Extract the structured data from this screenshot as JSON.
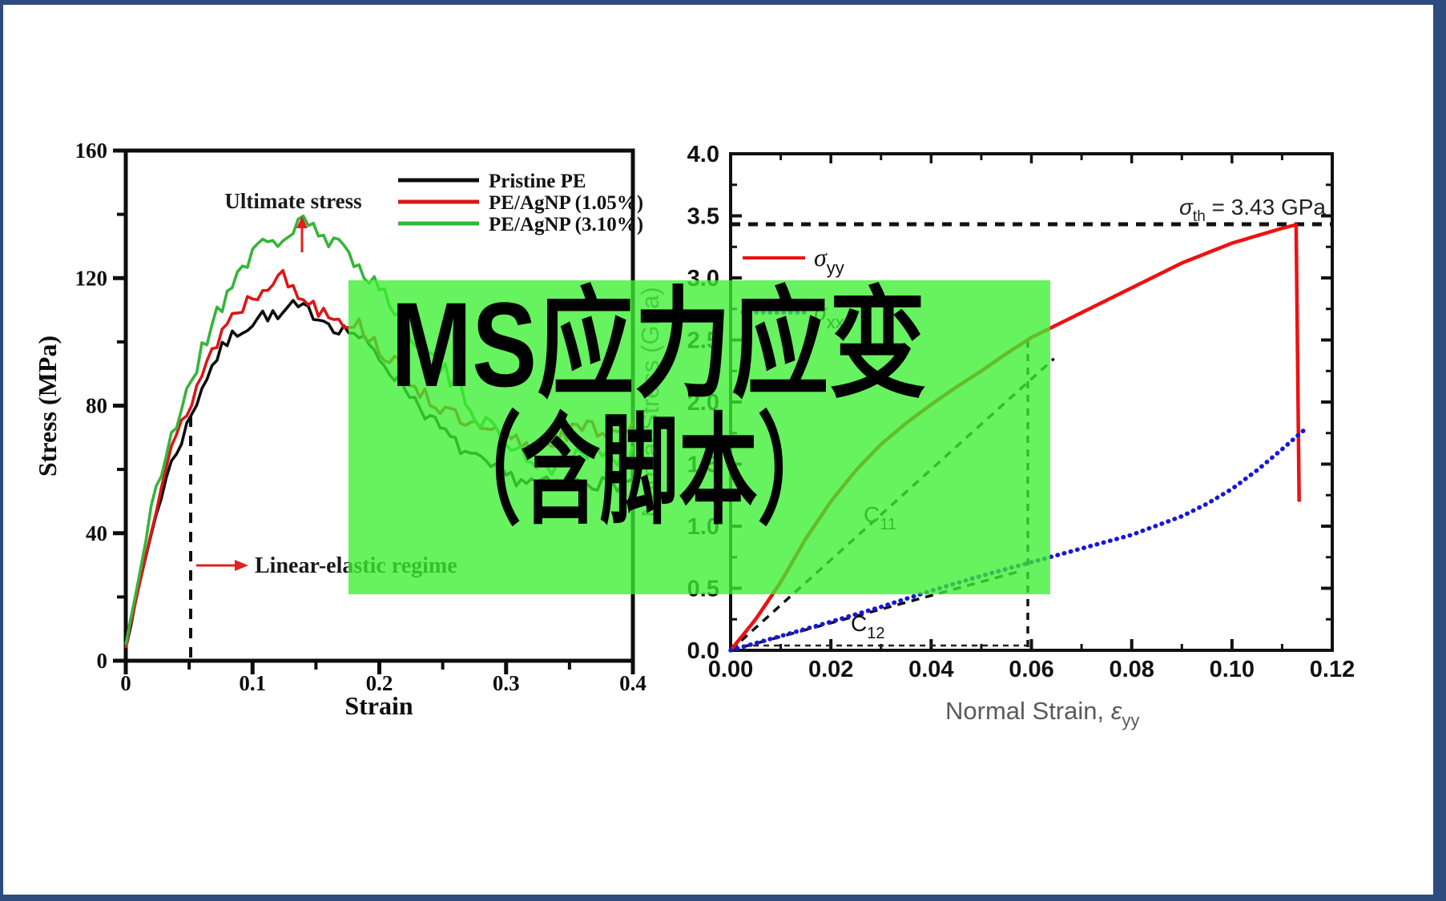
{
  "page": {
    "background": "#ffffff",
    "border_color": "#2e4b7d"
  },
  "banner": {
    "line1": "MS应力应变",
    "line2": "（含脚本）",
    "fill_color": "rgba(60,238,50,0.78)",
    "text_color": "#000000"
  },
  "chart_data": [
    {
      "id": "left",
      "type": "line",
      "xlabel": "Strain",
      "ylabel": "Stress (MPa)",
      "xlim": [
        0,
        0.4
      ],
      "ylim": [
        0,
        160
      ],
      "x_ticks": [
        0,
        0.1,
        0.2,
        0.3,
        0.4
      ],
      "x_tick_labels": [
        "0",
        "0.1",
        "0.2",
        "0.3",
        "0.4"
      ],
      "x_minor_ticks": [
        0.05,
        0.15,
        0.25,
        0.35
      ],
      "y_ticks": [
        0,
        40,
        80,
        120,
        160
      ],
      "y_tick_labels": [
        "0",
        "40",
        "80",
        "120",
        "160"
      ],
      "y_minor_ticks": [
        20,
        60,
        100,
        140
      ],
      "legend_position": "top-right",
      "legend": [
        {
          "label": "Pristine PE",
          "color": "#0d0d0d"
        },
        {
          "label": "PE/AgNP (1.05%)",
          "color": "#dc1616"
        },
        {
          "label": "PE/AgNP (3.10%)",
          "color": "#35b53a"
        }
      ],
      "annotations": {
        "ultimate_stress_text": "Ultimate stress",
        "ultimate_stress_at_strain": 0.14,
        "linear_elastic_text": "Linear-elastic regime",
        "elastic_boundary_strain": 0.05
      },
      "series": [
        {
          "name": "Pristine PE",
          "color": "#0d0d0d",
          "noise_mpa": 2.4,
          "seed": 7,
          "points": [
            [
              0,
              4
            ],
            [
              0.01,
              22
            ],
            [
              0.02,
              40
            ],
            [
              0.03,
              55
            ],
            [
              0.04,
              66
            ],
            [
              0.05,
              75
            ],
            [
              0.06,
              86
            ],
            [
              0.07,
              94
            ],
            [
              0.08,
              100
            ],
            [
              0.09,
              104
            ],
            [
              0.1,
              106
            ],
            [
              0.11,
              109
            ],
            [
              0.12,
              107
            ],
            [
              0.13,
              111
            ],
            [
              0.14,
              110
            ],
            [
              0.15,
              109
            ],
            [
              0.16,
              106
            ],
            [
              0.17,
              104
            ],
            [
              0.18,
              103
            ],
            [
              0.19,
              99
            ],
            [
              0.2,
              95
            ],
            [
              0.22,
              86
            ],
            [
              0.24,
              76
            ],
            [
              0.26,
              68
            ],
            [
              0.28,
              62
            ],
            [
              0.3,
              58
            ],
            [
              0.32,
              56
            ],
            [
              0.34,
              55
            ],
            [
              0.36,
              57
            ],
            [
              0.38,
              55
            ],
            [
              0.4,
              56
            ]
          ]
        },
        {
          "name": "PE/AgNP (1.05%)",
          "color": "#dc1616",
          "noise_mpa": 2.9,
          "seed": 13,
          "points": [
            [
              0,
              4
            ],
            [
              0.01,
              24
            ],
            [
              0.02,
              43
            ],
            [
              0.03,
              58
            ],
            [
              0.04,
              70
            ],
            [
              0.05,
              80
            ],
            [
              0.06,
              90
            ],
            [
              0.07,
              99
            ],
            [
              0.08,
              106
            ],
            [
              0.09,
              111
            ],
            [
              0.1,
              114
            ],
            [
              0.11,
              118
            ],
            [
              0.12,
              122
            ],
            [
              0.13,
              117
            ],
            [
              0.14,
              114
            ],
            [
              0.15,
              111
            ],
            [
              0.16,
              110
            ],
            [
              0.17,
              107
            ],
            [
              0.18,
              106
            ],
            [
              0.19,
              103
            ],
            [
              0.2,
              98
            ],
            [
              0.22,
              90
            ],
            [
              0.24,
              82
            ],
            [
              0.26,
              76
            ],
            [
              0.28,
              72
            ],
            [
              0.3,
              70
            ],
            [
              0.32,
              67
            ],
            [
              0.34,
              70
            ],
            [
              0.36,
              73
            ],
            [
              0.38,
              72
            ],
            [
              0.4,
              74
            ]
          ]
        },
        {
          "name": "PE/AgNP (3.10%)",
          "color": "#35b53a",
          "noise_mpa": 3.3,
          "seed": 21,
          "points": [
            [
              0,
              5
            ],
            [
              0.01,
              26
            ],
            [
              0.02,
              46
            ],
            [
              0.03,
              62
            ],
            [
              0.04,
              75
            ],
            [
              0.05,
              87
            ],
            [
              0.06,
              97
            ],
            [
              0.07,
              107
            ],
            [
              0.08,
              116
            ],
            [
              0.09,
              123
            ],
            [
              0.1,
              128
            ],
            [
              0.11,
              130
            ],
            [
              0.12,
              132
            ],
            [
              0.13,
              134
            ],
            [
              0.14,
              140
            ],
            [
              0.15,
              133
            ],
            [
              0.16,
              131
            ],
            [
              0.17,
              129
            ],
            [
              0.18,
              126
            ],
            [
              0.19,
              122
            ],
            [
              0.2,
              117
            ],
            [
              0.22,
              106
            ],
            [
              0.24,
              96
            ],
            [
              0.26,
              86
            ],
            [
              0.28,
              76
            ],
            [
              0.3,
              69
            ],
            [
              0.32,
              63
            ],
            [
              0.34,
              61
            ],
            [
              0.36,
              66
            ],
            [
              0.38,
              63
            ],
            [
              0.4,
              66
            ]
          ]
        }
      ]
    },
    {
      "id": "right",
      "type": "line",
      "xlabel": {
        "text": "Normal Strain, ",
        "symbol": "ε",
        "sub": "yy"
      },
      "ylabel": "Normal Stress (GPa)",
      "xlim": [
        0,
        0.12
      ],
      "ylim": [
        0,
        4.0
      ],
      "x_ticks": [
        0,
        0.02,
        0.04,
        0.06,
        0.08,
        0.1,
        0.12
      ],
      "x_tick_labels": [
        "0.00",
        "0.02",
        "0.04",
        "0.06",
        "0.08",
        "0.10",
        "0.12"
      ],
      "y_ticks": [
        0,
        0.5,
        1.0,
        1.5,
        2.0,
        2.5,
        3.0,
        3.5,
        4.0
      ],
      "y_tick_labels": [
        "0.0",
        "0.5",
        "1.0",
        "1.5",
        "2.0",
        "2.5",
        "3.0",
        "3.5",
        "4.0"
      ],
      "legend": [
        {
          "symbol": "σ",
          "sub": "yy",
          "color": "#ee1111",
          "style": "solid"
        },
        {
          "symbol": "σ",
          "sub": "xx",
          "color": "#1616dd",
          "style": "dotted"
        }
      ],
      "threshold": {
        "value": 3.43,
        "symbol": "σ",
        "sub": "th",
        "rest": " = 3.43 GPa"
      },
      "guide_strain": 0.06,
      "tangents": [
        {
          "label": "C",
          "sub": "11",
          "from": [
            0,
            0
          ],
          "to": [
            0.0645,
            2.35
          ]
        },
        {
          "label": "C",
          "sub": "12",
          "from": [
            0,
            0
          ],
          "to": [
            0.058,
            0.64
          ]
        }
      ],
      "series": [
        {
          "name": "sigma_yy",
          "color": "#ee1111",
          "style": "solid",
          "points": [
            [
              0,
              0
            ],
            [
              0.005,
              0.25
            ],
            [
              0.01,
              0.55
            ],
            [
              0.015,
              0.9
            ],
            [
              0.02,
              1.2
            ],
            [
              0.025,
              1.45
            ],
            [
              0.03,
              1.66
            ],
            [
              0.035,
              1.83
            ],
            [
              0.04,
              1.98
            ],
            [
              0.045,
              2.12
            ],
            [
              0.05,
              2.25
            ],
            [
              0.055,
              2.39
            ],
            [
              0.06,
              2.52
            ],
            [
              0.065,
              2.62
            ],
            [
              0.07,
              2.72
            ],
            [
              0.075,
              2.82
            ],
            [
              0.08,
              2.92
            ],
            [
              0.085,
              3.02
            ],
            [
              0.09,
              3.12
            ],
            [
              0.095,
              3.2
            ],
            [
              0.1,
              3.28
            ],
            [
              0.105,
              3.34
            ],
            [
              0.11,
              3.4
            ],
            [
              0.113,
              3.43
            ],
            [
              0.1132,
              3.43
            ],
            [
              0.1135,
              0.08
            ]
          ]
        },
        {
          "name": "sigma_xx",
          "color": "#1616dd",
          "style": "dotted",
          "points": [
            [
              0,
              0
            ],
            [
              0.01,
              0.115
            ],
            [
              0.02,
              0.23
            ],
            [
              0.03,
              0.35
            ],
            [
              0.04,
              0.48
            ],
            [
              0.05,
              0.6
            ],
            [
              0.06,
              0.71
            ],
            [
              0.07,
              0.82
            ],
            [
              0.08,
              0.93
            ],
            [
              0.09,
              1.08
            ],
            [
              0.095,
              1.18
            ],
            [
              0.1,
              1.3
            ],
            [
              0.105,
              1.45
            ],
            [
              0.11,
              1.62
            ],
            [
              0.1145,
              1.78
            ],
            [
              0.1148,
              1.78
            ],
            [
              0.115,
              0.04
            ]
          ]
        }
      ]
    }
  ]
}
